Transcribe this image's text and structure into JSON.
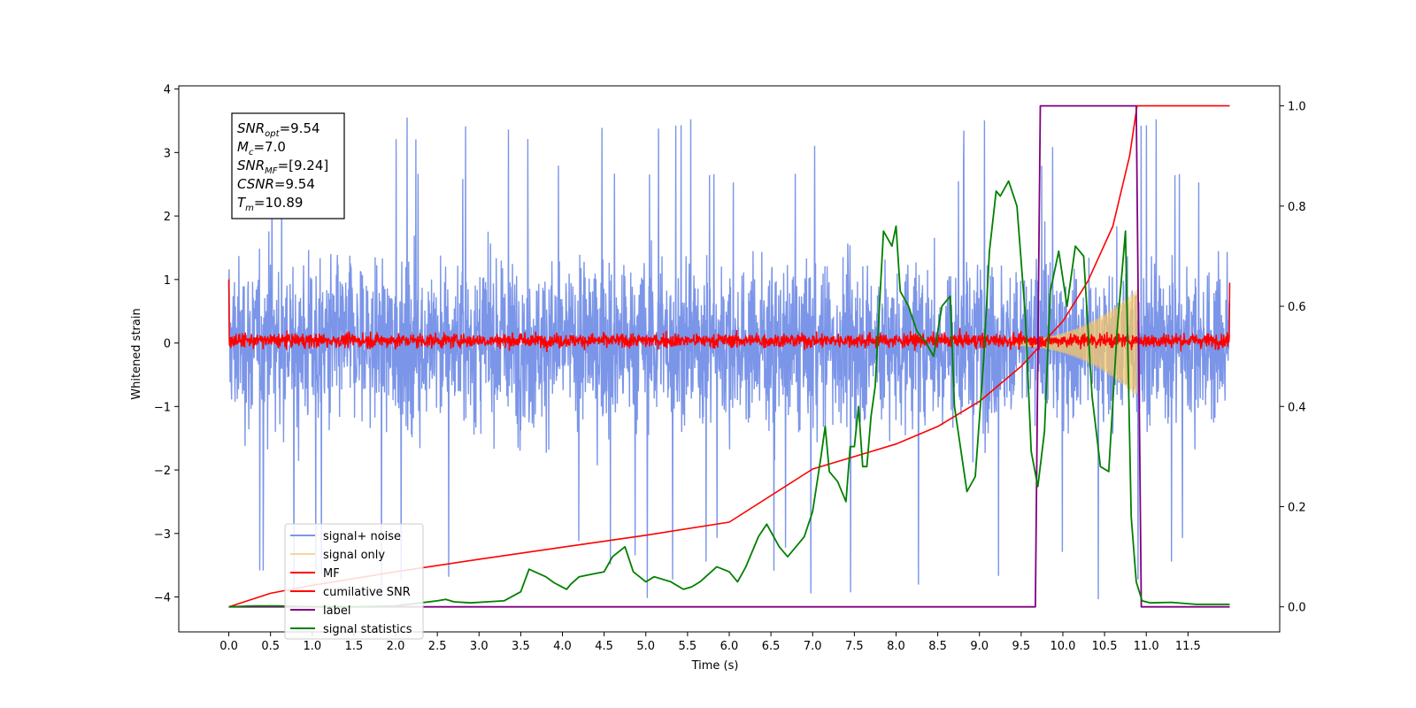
{
  "chart_data": {
    "type": "line",
    "xlabel": "Time (s)",
    "ylabel": "Whitened strain",
    "xlim": [
      -0.6,
      12.6
    ],
    "ylim": [
      -4.55,
      4.05
    ],
    "y2lim": [
      -0.05,
      1.04
    ],
    "x_ticks": [
      "0.0",
      "0.5",
      "1.0",
      "1.5",
      "2.0",
      "2.5",
      "3.0",
      "3.5",
      "4.0",
      "4.5",
      "5.0",
      "5.5",
      "6.0",
      "6.5",
      "7.0",
      "7.5",
      "8.0",
      "8.5",
      "9.0",
      "9.5",
      "10.0",
      "10.5",
      "11.0",
      "11.5"
    ],
    "y_ticks": [
      "4",
      "3",
      "2",
      "1",
      "0",
      "−1",
      "−2",
      "−3",
      "−4"
    ],
    "y2_ticks": [
      "1.0",
      "0.8",
      "0.6",
      "0.4",
      "0.2",
      "0.0"
    ],
    "grid": false,
    "legend_position": "lower-left",
    "annotation": {
      "lines": [
        {
          "name": "SNR",
          "sub": "opt",
          "value": "=9.54"
        },
        {
          "name": "M",
          "sub": "c",
          "value": "=7.0"
        },
        {
          "name": "SNR",
          "sub": "MF",
          "value": "=[9.24]"
        },
        {
          "name": "CSNR",
          "sub": "",
          "value": "=9.54"
        },
        {
          "name": "T",
          "sub": "m",
          "value": "=10.89"
        }
      ]
    },
    "series": [
      {
        "name": "signal+ noise",
        "color": "#7b95e8",
        "axis": "left",
        "kind": "noise",
        "x_range": [
          0.0,
          12.0
        ],
        "amplitude_range": [
          -4.15,
          3.65
        ]
      },
      {
        "name": "signal only",
        "color": "#f5c76a",
        "axis": "left",
        "kind": "chirp",
        "x_range": [
          9.4,
          10.89
        ],
        "envelope_peak": 0.8
      },
      {
        "name": "MF",
        "color": "#ff0000",
        "axis": "left",
        "kind": "noise",
        "x_range": [
          0.0,
          12.0
        ],
        "amplitude_range": [
          -0.25,
          0.3
        ],
        "edge_values": [
          1.0,
          0.95
        ]
      },
      {
        "name": "cumilative SNR",
        "color": "#ff0000",
        "axis": "right",
        "x": [
          0.0,
          0.5,
          1.0,
          2.0,
          3.0,
          4.0,
          5.0,
          6.0,
          7.0,
          7.5,
          8.0,
          8.5,
          9.0,
          9.5,
          10.0,
          10.3,
          10.6,
          10.8,
          10.89,
          12.0
        ],
        "values": [
          0.0,
          0.027,
          0.043,
          0.07,
          0.095,
          0.119,
          0.143,
          0.169,
          0.275,
          0.3,
          0.325,
          0.36,
          0.41,
          0.48,
          0.57,
          0.65,
          0.76,
          0.9,
          1.0,
          1.0
        ]
      },
      {
        "name": "label",
        "color": "#800080",
        "axis": "right",
        "x": [
          0.0,
          9.67,
          9.73,
          10.88,
          10.94,
          12.0
        ],
        "values": [
          0.0,
          0.0,
          1.0,
          1.0,
          0.0,
          0.0
        ]
      },
      {
        "name": "signal statistics",
        "color": "#008000",
        "axis": "right",
        "x": [
          0.0,
          0.3,
          0.6,
          1.0,
          1.5,
          2.0,
          2.3,
          2.5,
          2.6,
          2.7,
          2.9,
          3.1,
          3.3,
          3.5,
          3.6,
          3.8,
          3.9,
          4.05,
          4.1,
          4.2,
          4.35,
          4.5,
          4.6,
          4.75,
          4.85,
          5.0,
          5.1,
          5.3,
          5.45,
          5.55,
          5.65,
          5.85,
          6.0,
          6.1,
          6.2,
          6.35,
          6.45,
          6.6,
          6.7,
          6.8,
          6.9,
          7.0,
          7.1,
          7.15,
          7.2,
          7.3,
          7.4,
          7.45,
          7.5,
          7.55,
          7.6,
          7.65,
          7.7,
          7.75,
          7.85,
          7.95,
          8.0,
          8.05,
          8.15,
          8.25,
          8.35,
          8.45,
          8.55,
          8.65,
          8.7,
          8.85,
          8.95,
          9.05,
          9.12,
          9.2,
          9.25,
          9.35,
          9.45,
          9.55,
          9.62,
          9.7,
          9.78,
          9.85,
          9.95,
          10.05,
          10.15,
          10.25,
          10.35,
          10.45,
          10.55,
          10.65,
          10.75,
          10.82,
          10.88,
          10.95,
          11.05,
          11.3,
          11.6,
          12.0
        ],
        "values": [
          0.0,
          0.002,
          0.002,
          0.0,
          0.0,
          0.002,
          0.008,
          0.012,
          0.015,
          0.01,
          0.008,
          0.01,
          0.012,
          0.03,
          0.075,
          0.06,
          0.048,
          0.035,
          0.045,
          0.06,
          0.065,
          0.07,
          0.1,
          0.12,
          0.07,
          0.05,
          0.06,
          0.05,
          0.035,
          0.04,
          0.05,
          0.08,
          0.07,
          0.05,
          0.08,
          0.14,
          0.165,
          0.12,
          0.1,
          0.12,
          0.14,
          0.19,
          0.3,
          0.36,
          0.27,
          0.25,
          0.21,
          0.32,
          0.32,
          0.4,
          0.28,
          0.28,
          0.38,
          0.44,
          0.75,
          0.72,
          0.76,
          0.63,
          0.6,
          0.55,
          0.53,
          0.5,
          0.6,
          0.62,
          0.4,
          0.23,
          0.26,
          0.49,
          0.71,
          0.83,
          0.82,
          0.85,
          0.8,
          0.58,
          0.31,
          0.24,
          0.35,
          0.63,
          0.71,
          0.6,
          0.72,
          0.7,
          0.42,
          0.28,
          0.27,
          0.55,
          0.75,
          0.18,
          0.05,
          0.012,
          0.008,
          0.009,
          0.005,
          0.005
        ]
      }
    ]
  }
}
